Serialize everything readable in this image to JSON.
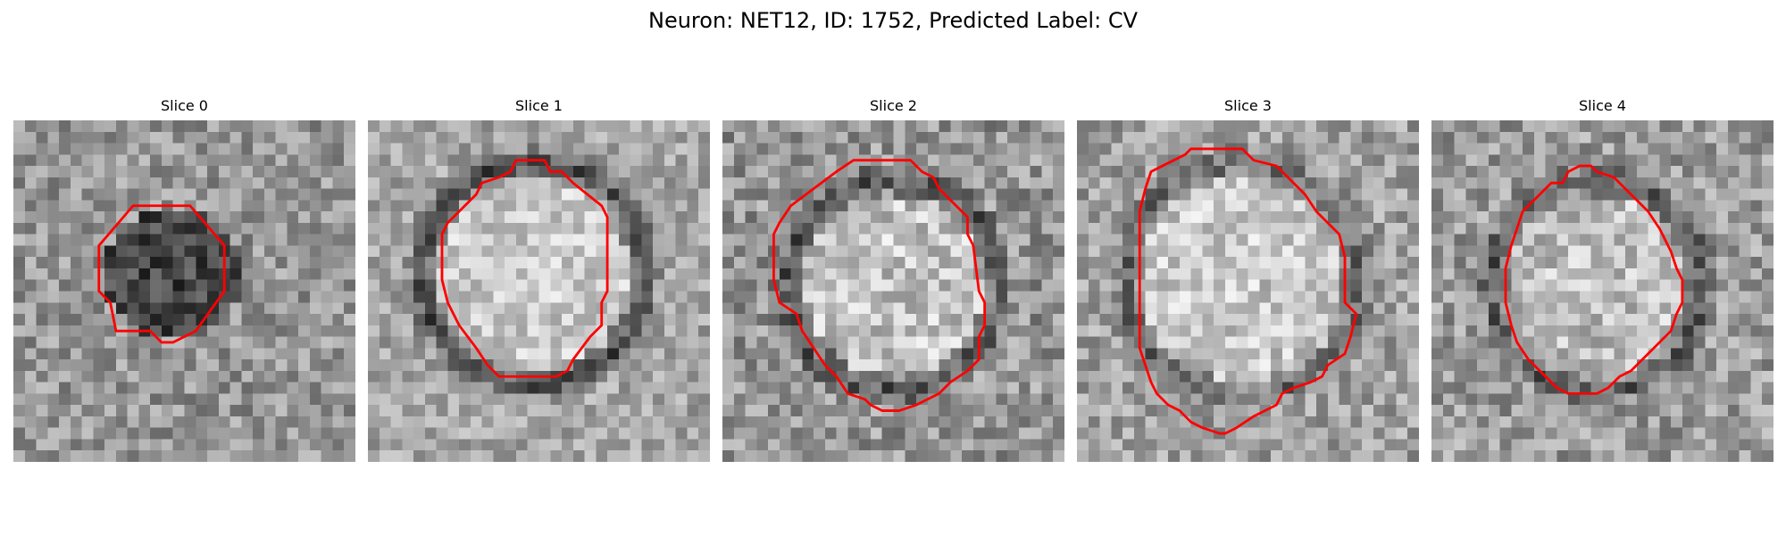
{
  "figure": {
    "title": "Neuron: NET12, ID: 1752, Predicted Label: CV"
  },
  "contour_color": "#ff0000",
  "slices": [
    {
      "label": "Slice 0",
      "base_gray": 150,
      "center": [
        14,
        13.5
      ],
      "blob_radius": 6,
      "blob_delta": -80,
      "ring_delta": 0,
      "noise": 45,
      "contour": [
        [
          10.5,
          7.5
        ],
        [
          15.5,
          7.5
        ],
        [
          18.5,
          11
        ],
        [
          18.5,
          15
        ],
        [
          16,
          18.5
        ],
        [
          14,
          19.5
        ],
        [
          13,
          19.5
        ],
        [
          12,
          18.5
        ],
        [
          9,
          18.5
        ],
        [
          8.5,
          16
        ],
        [
          7.5,
          15
        ],
        [
          7.5,
          11
        ]
      ]
    },
    {
      "label": "Slice 1",
      "base_gray": 165,
      "center": [
        14.5,
        13.5
      ],
      "blob_radius": 8.5,
      "blob_delta": 35,
      "ring_delta": -95,
      "noise": 40,
      "contour": [
        [
          9.5,
          6.5
        ],
        [
          10,
          5.5
        ],
        [
          11.5,
          5
        ],
        [
          12.5,
          4.5
        ],
        [
          13,
          3.5
        ],
        [
          15.5,
          3.5
        ],
        [
          16,
          4.5
        ],
        [
          17,
          4.5
        ],
        [
          18,
          5.5
        ],
        [
          20.5,
          7.5
        ],
        [
          21,
          8.5
        ],
        [
          21,
          15
        ],
        [
          20.5,
          16
        ],
        [
          20.5,
          18
        ],
        [
          19.5,
          19
        ],
        [
          18,
          21
        ],
        [
          17.5,
          22
        ],
        [
          16.5,
          22.5
        ],
        [
          11.5,
          22.5
        ],
        [
          10.5,
          21.5
        ],
        [
          9.5,
          20
        ],
        [
          8,
          18
        ],
        [
          7,
          16
        ],
        [
          6.5,
          14
        ],
        [
          6.5,
          10
        ],
        [
          7,
          9
        ],
        [
          8,
          8
        ]
      ]
    },
    {
      "label": "Slice 2",
      "base_gray": 150,
      "center": [
        15,
        14.5
      ],
      "blob_radius": 8,
      "blob_delta": 45,
      "ring_delta": -70,
      "noise": 50,
      "contour": [
        [
          8,
          6
        ],
        [
          10,
          4.5
        ],
        [
          11.5,
          3.5
        ],
        [
          16.5,
          3.5
        ],
        [
          17.5,
          4.5
        ],
        [
          18.5,
          5
        ],
        [
          19,
          6
        ],
        [
          21.5,
          8.5
        ],
        [
          21.5,
          10
        ],
        [
          22,
          11
        ],
        [
          22.5,
          15
        ],
        [
          23,
          16
        ],
        [
          23,
          18
        ],
        [
          22.5,
          19
        ],
        [
          22.5,
          21
        ],
        [
          21.5,
          22
        ],
        [
          20,
          23
        ],
        [
          19,
          24
        ],
        [
          17,
          25
        ],
        [
          15.5,
          25.5
        ],
        [
          14,
          25.5
        ],
        [
          13,
          25
        ],
        [
          12.5,
          24.5
        ],
        [
          11,
          24
        ],
        [
          10,
          22.5
        ],
        [
          9,
          21.5
        ],
        [
          8,
          20
        ],
        [
          7,
          18.5
        ],
        [
          6.5,
          17
        ],
        [
          5,
          16
        ],
        [
          4.5,
          14
        ],
        [
          4.5,
          10
        ],
        [
          5,
          9
        ],
        [
          6,
          7.5
        ]
      ]
    },
    {
      "label": "Slice 3",
      "base_gray": 160,
      "center": [
        14.5,
        14
      ],
      "blob_radius": 9,
      "blob_delta": 40,
      "ring_delta": -60,
      "noise": 45,
      "contour": [
        [
          6.5,
          4.5
        ],
        [
          7.5,
          4
        ],
        [
          8.5,
          3.5
        ],
        [
          9.5,
          3
        ],
        [
          10,
          2.5
        ],
        [
          11,
          2.5
        ],
        [
          14.5,
          2.5
        ],
        [
          15.5,
          3.5
        ],
        [
          17.5,
          4
        ],
        [
          19,
          5.5
        ],
        [
          20,
          6.5
        ],
        [
          21,
          8
        ],
        [
          22,
          9
        ],
        [
          23,
          10
        ],
        [
          23.5,
          12
        ],
        [
          23.5,
          16
        ],
        [
          24.5,
          17
        ],
        [
          24,
          19
        ],
        [
          23.5,
          20.5
        ],
        [
          22,
          21.5
        ],
        [
          21.5,
          22.5
        ],
        [
          20.5,
          23
        ],
        [
          19,
          23.5
        ],
        [
          18,
          24
        ],
        [
          17.5,
          25
        ],
        [
          16.5,
          25.5
        ],
        [
          15.5,
          26
        ],
        [
          14,
          27
        ],
        [
          13,
          27.5
        ],
        [
          12.5,
          27.5
        ],
        [
          11,
          27
        ],
        [
          10,
          26.5
        ],
        [
          9,
          25.5
        ],
        [
          8,
          25
        ],
        [
          7,
          24
        ],
        [
          6.5,
          23
        ],
        [
          6,
          21.5
        ],
        [
          5.5,
          20
        ],
        [
          5.5,
          19
        ],
        [
          5.5,
          17
        ],
        [
          5.5,
          15
        ],
        [
          5.5,
          11
        ],
        [
          5.5,
          8
        ],
        [
          6,
          6
        ]
      ]
    },
    {
      "label": "Slice 4",
      "base_gray": 155,
      "center": [
        14.5,
        14.5
      ],
      "blob_radius": 8,
      "blob_delta": 35,
      "ring_delta": -70,
      "noise": 48,
      "contour": [
        [
          9.5,
          6.5
        ],
        [
          10.5,
          5.5
        ],
        [
          11.5,
          5.5
        ],
        [
          12,
          4.5
        ],
        [
          13,
          4
        ],
        [
          14,
          4
        ],
        [
          14.5,
          4.5
        ],
        [
          16,
          5
        ],
        [
          17,
          6
        ],
        [
          18,
          7
        ],
        [
          19,
          8
        ],
        [
          20,
          9.5
        ],
        [
          21,
          11.5
        ],
        [
          21.5,
          13
        ],
        [
          22,
          14
        ],
        [
          22,
          16
        ],
        [
          21.5,
          17
        ],
        [
          21,
          18.5
        ],
        [
          19.5,
          20
        ],
        [
          18.5,
          21
        ],
        [
          17.5,
          22
        ],
        [
          16.5,
          22.5
        ],
        [
          15.5,
          23.5
        ],
        [
          14.5,
          24
        ],
        [
          12,
          24
        ],
        [
          11,
          23.5
        ],
        [
          10,
          22.5
        ],
        [
          9.5,
          22
        ],
        [
          8.5,
          21
        ],
        [
          7.5,
          19.5
        ],
        [
          7,
          18
        ],
        [
          6.5,
          16
        ],
        [
          6.5,
          13
        ],
        [
          7,
          11
        ],
        [
          7.5,
          9.5
        ],
        [
          8,
          8
        ]
      ]
    }
  ]
}
